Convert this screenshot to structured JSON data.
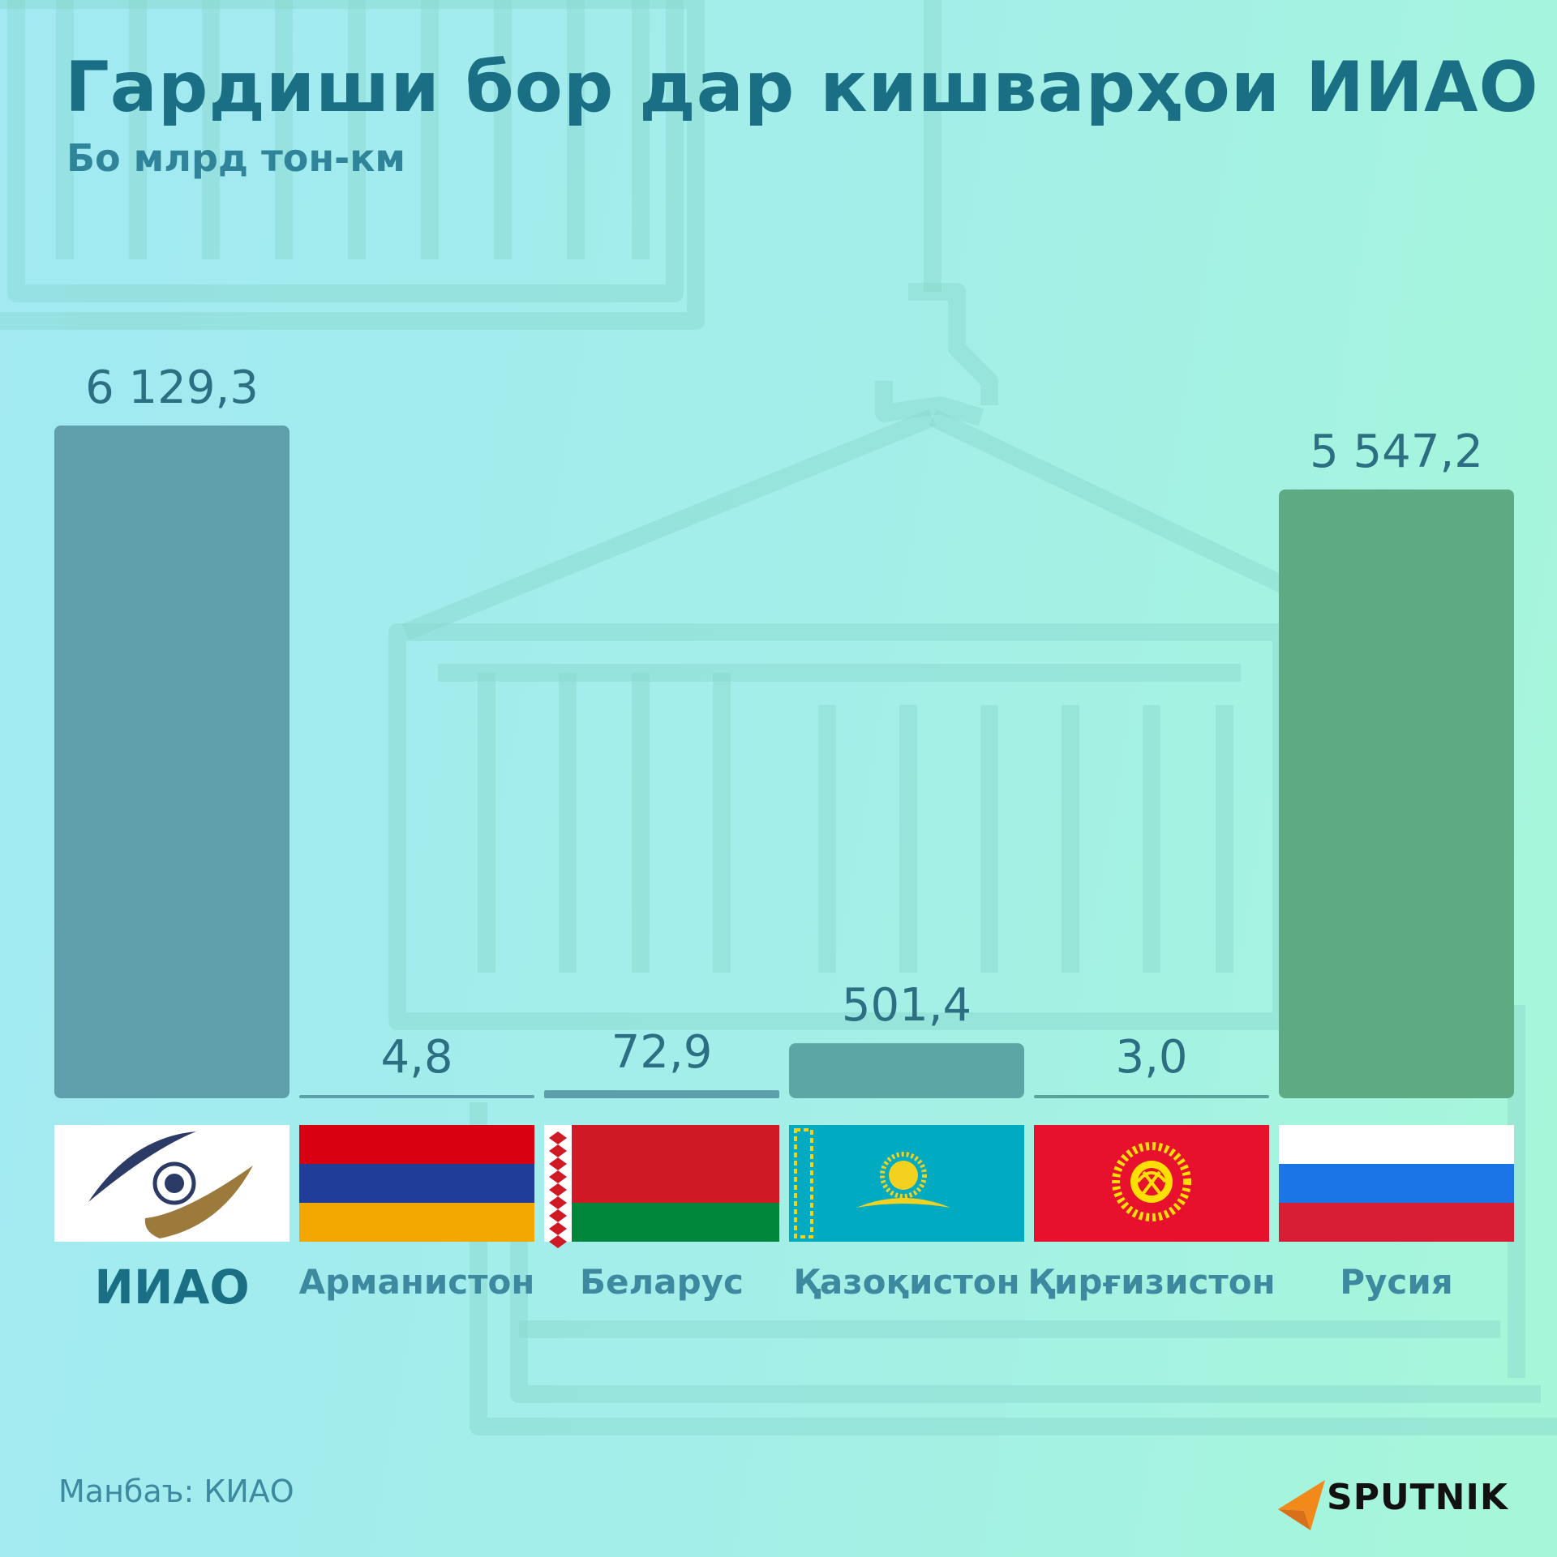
{
  "title": "Гардиши бор дар кишварҳои ИИАО",
  "subtitle": "Бо млрд тон-км",
  "source": "Манбаъ: КИАО",
  "brand": "SPUTNIK",
  "colors": {
    "title": "#1b6f85",
    "value_text": "#2c6f82",
    "label_text": "#3d8aa0",
    "brand_arrow": "#f28a1b"
  },
  "chart_data": {
    "type": "bar",
    "title": "Гардиши бор дар кишварҳои ИИАО",
    "subtitle": "Бо млрд тон-км",
    "categories": [
      "ИИАО",
      "Арманистон",
      "Беларус",
      "Қазоқистон",
      "Қирғизистон",
      "Русия"
    ],
    "values": [
      6129.3,
      4.8,
      72.9,
      501.4,
      3.0,
      5547.2
    ],
    "value_labels": [
      "6 129,3",
      "4,8",
      "72,9",
      "501,4",
      "3,0",
      "5 547,2"
    ],
    "bar_colors": [
      "#5f9eab",
      "#5f9eab",
      "#5c9fab",
      "#5ca6a5",
      "#5aa39c",
      "#5eab83"
    ],
    "flags": [
      "eaeu-emblem",
      "armenia-flag",
      "belarus-flag",
      "kazakhstan-flag",
      "kyrgyzstan-flag",
      "russia-flag"
    ],
    "ylim": [
      0,
      6129.3
    ],
    "grid": false,
    "legend": "none"
  }
}
